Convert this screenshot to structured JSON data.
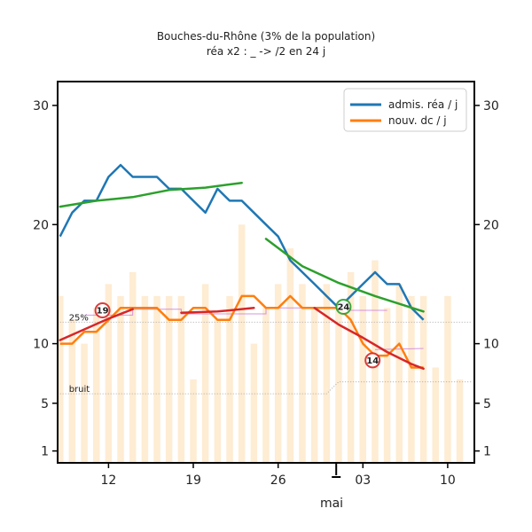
{
  "chart_data": {
    "type": "line",
    "title": "Bouches-du-Rhône (3% de la population)",
    "subtitle": "réa x2 : _ -> /2 en 24 j",
    "xlabel": "mai",
    "x_tick_labels": [
      {
        "day": 12,
        "label": "12"
      },
      {
        "day": 19,
        "label": "19"
      },
      {
        "day": 26,
        "label": "26"
      },
      {
        "day": 33,
        "label": "03"
      },
      {
        "day": 40,
        "label": "10"
      }
    ],
    "y_ticks": [
      1,
      5,
      10,
      20,
      30
    ],
    "ylim": [
      0,
      32
    ],
    "xlim": [
      7.8,
      42.2
    ],
    "legend": [
      {
        "label": "admis. réa / j",
        "color": "#1f77b4"
      },
      {
        "label": "nouv. dc / j",
        "color": "#ff7f0e"
      }
    ],
    "series": [
      {
        "name": "admis. réa / j",
        "color": "#1f77b4",
        "x": [
          8,
          9,
          10,
          11,
          12,
          13,
          14,
          15,
          16,
          17,
          18,
          19,
          20,
          21,
          22,
          23,
          24,
          25,
          26,
          27,
          28,
          29,
          30,
          31,
          32,
          33,
          34,
          35,
          36,
          37,
          38
        ],
        "values": [
          19,
          21,
          22,
          22,
          24,
          25,
          24,
          24,
          24,
          23,
          23,
          22,
          21,
          23,
          22,
          22,
          21,
          20,
          19,
          17,
          16,
          15,
          14,
          13,
          14,
          15,
          16,
          15,
          15,
          13,
          12
        ]
      },
      {
        "name": "nouv. dc / j",
        "color": "#ff7f0e",
        "x": [
          8,
          9,
          10,
          11,
          12,
          13,
          14,
          15,
          16,
          17,
          18,
          19,
          20,
          21,
          22,
          23,
          24,
          25,
          26,
          27,
          28,
          29,
          30,
          31,
          32,
          33,
          34,
          35,
          36,
          37,
          38
        ],
        "values": [
          10,
          10,
          11,
          11,
          12,
          13,
          13,
          13,
          13,
          12,
          12,
          13,
          13,
          12,
          12,
          14,
          14,
          13,
          13,
          14,
          13,
          13,
          13,
          13,
          12,
          10,
          9,
          9,
          10,
          8,
          8
        ]
      }
    ],
    "trend_lines": [
      {
        "color": "#2ca02c",
        "x": [
          8,
          11,
          14,
          17,
          20,
          23
        ],
        "values": [
          21.5,
          22.0,
          22.3,
          22.9,
          23.1,
          23.5
        ]
      },
      {
        "color": "#2ca02c",
        "x": [
          25,
          28,
          31,
          34,
          38
        ],
        "values": [
          18.8,
          16.5,
          15.1,
          14.0,
          12.7
        ]
      },
      {
        "color": "#d62728",
        "x": [
          8,
          10,
          12,
          14
        ],
        "values": [
          10.3,
          11.2,
          12.1,
          12.9
        ]
      },
      {
        "color": "#d62728",
        "x": [
          18,
          21,
          24
        ],
        "values": [
          12.6,
          12.7,
          13.0
        ]
      },
      {
        "color": "#d62728",
        "x": [
          29,
          31,
          33,
          35,
          37,
          38
        ],
        "values": [
          13.0,
          11.6,
          10.5,
          9.3,
          8.3,
          7.9
        ]
      }
    ],
    "bars": {
      "color": "#fde6c4",
      "x": [
        8,
        9,
        10,
        11,
        12,
        13,
        14,
        15,
        16,
        17,
        18,
        19,
        20,
        21,
        22,
        23,
        24,
        25,
        26,
        27,
        28,
        29,
        30,
        31,
        32,
        33,
        34,
        35,
        36,
        37,
        38,
        39,
        40,
        41
      ],
      "values": [
        14,
        12,
        10,
        13,
        15,
        14,
        16,
        14,
        14,
        14,
        14,
        7,
        15,
        12,
        14,
        20,
        10,
        13,
        15,
        18,
        15,
        13,
        15,
        13,
        16,
        14,
        17,
        13,
        15,
        14,
        14,
        8,
        14,
        7
      ]
    },
    "reference_lines": [
      {
        "label": "25%",
        "x": [
          8,
          42
        ],
        "values": [
          11.8,
          11.8
        ]
      },
      {
        "label": "bruit",
        "x": [
          8,
          30,
          31,
          42
        ],
        "values": [
          5.8,
          5.8,
          6.8,
          6.8
        ]
      }
    ],
    "purple_steps": [
      {
        "x": [
          10,
          14,
          14,
          18,
          18,
          25,
          25,
          32,
          32,
          35
        ],
        "values": [
          12.4,
          12.4,
          12.9,
          12.9,
          12.5,
          12.5,
          13.0,
          13.0,
          12.8,
          12.8
        ]
      },
      {
        "x": [
          34,
          38
        ],
        "values": [
          9.5,
          9.6
        ]
      }
    ],
    "annotations": [
      {
        "text": "19",
        "x": 11.5,
        "y": 12.8,
        "color": "#d62728"
      },
      {
        "text": "24",
        "x": 31.4,
        "y": 13.1,
        "color": "#2ca02c"
      },
      {
        "text": "14",
        "x": 33.8,
        "y": 8.6,
        "color": "#d62728"
      }
    ],
    "legend_position": "top-right",
    "grid": false
  }
}
